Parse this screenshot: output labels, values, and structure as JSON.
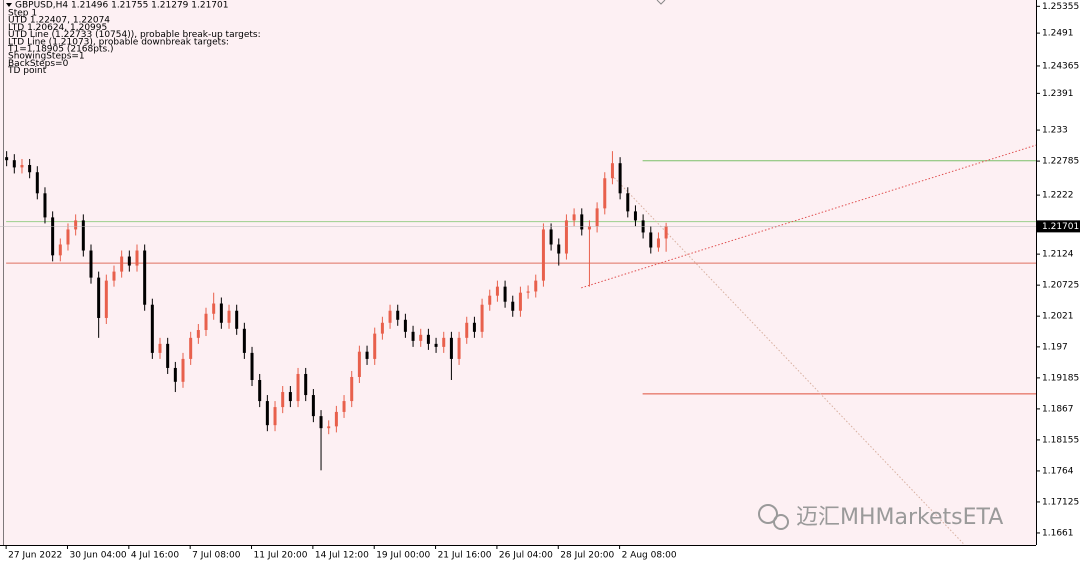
{
  "chart_data": {
    "type": "candlestick",
    "symbol_header": "GBPUSD,H4  1.21496 1.21755 1.21279 1.21701",
    "info_lines": [
      "Step 1",
      "UTD 1.22407, 1.22074",
      "LTD 1.20624, 1.20995",
      "UTD Line (1.22733 (10754)), probable break-up targets:",
      "LTD Line (1.21073), probable downbreak targets:",
      "T1=1.18905 (2168pts.)",
      "ShowingSteps=1",
      "BackSteps=0",
      "TD point"
    ],
    "watermark": "迈汇MHMarketsETA",
    "up_color": "#e8604c",
    "down_color": "#000000",
    "background": "#fdf0f3",
    "open": [
      1.2285,
      1.228,
      1.2268,
      1.2272,
      1.226,
      1.2225,
      1.2185,
      1.2122,
      1.214,
      1.2165,
      1.218,
      1.213,
      1.2085,
      1.2018,
      1.208,
      1.2095,
      1.212,
      1.2105,
      1.213,
      1.204,
      1.196,
      1.1975,
      1.1935,
      1.1912,
      1.195,
      1.1985,
      1.1998,
      1.2025,
      1.2042,
      1.201,
      1.203,
      1.2,
      1.196,
      1.1915,
      1.188,
      1.184,
      1.187,
      1.1895,
      1.188,
      1.1925,
      1.189,
      1.1855,
      1.1835,
      1.1838,
      1.1862,
      1.188,
      1.192,
      1.1962,
      1.195,
      1.1992,
      1.201,
      1.203,
      1.2015,
      1.1995,
      1.198,
      1.199,
      1.1975,
      1.197,
      1.1985,
      1.195,
      1.1985,
      1.201,
      1.1995,
      1.204,
      1.2055,
      1.207,
      1.2045,
      1.203,
      1.206,
      1.2062,
      1.208,
      1.2165,
      1.214,
      1.2125,
      1.218,
      1.219,
      1.2165,
      1.217,
      1.22,
      1.225,
      1.2275,
      1.2225,
      1.2195,
      1.218,
      1.216,
      1.2135,
      1.215
    ],
    "high": [
      1.2295,
      1.229,
      1.2282,
      1.2282,
      1.227,
      1.2235,
      1.2195,
      1.215,
      1.2175,
      1.219,
      1.219,
      1.214,
      1.2095,
      1.209,
      1.2105,
      1.213,
      1.213,
      1.214,
      1.214,
      1.205,
      1.1985,
      1.1985,
      1.1945,
      1.196,
      1.1995,
      1.2008,
      1.2035,
      1.206,
      1.2052,
      1.204,
      1.204,
      1.201,
      1.197,
      1.1925,
      1.189,
      1.188,
      1.1905,
      1.1905,
      1.1935,
      1.1935,
      1.19,
      1.1865,
      1.1848,
      1.1872,
      1.189,
      1.193,
      1.1972,
      1.1972,
      1.2002,
      1.202,
      1.204,
      1.204,
      1.2025,
      1.2005,
      1.2,
      1.2,
      1.1985,
      1.1995,
      1.1995,
      1.1995,
      1.202,
      1.202,
      1.205,
      1.2065,
      1.208,
      1.208,
      1.2055,
      1.207,
      1.2072,
      1.209,
      1.2175,
      1.2175,
      1.215,
      1.219,
      1.22,
      1.22,
      1.218,
      1.221,
      1.226,
      1.2295,
      1.2285,
      1.2235,
      1.2205,
      1.219,
      1.217,
      1.216,
      1.2176
    ],
    "low": [
      1.227,
      1.2258,
      1.2258,
      1.225,
      1.2215,
      1.2175,
      1.2112,
      1.2112,
      1.213,
      1.2155,
      1.212,
      1.2075,
      1.1985,
      1.2008,
      1.207,
      1.2085,
      1.2095,
      1.2095,
      1.203,
      1.195,
      1.195,
      1.1925,
      1.1895,
      1.1902,
      1.194,
      1.1975,
      1.1988,
      1.2015,
      1.2,
      1.2,
      1.199,
      1.195,
      1.1905,
      1.187,
      1.183,
      1.183,
      1.186,
      1.187,
      1.187,
      1.188,
      1.1845,
      1.1765,
      1.1825,
      1.1828,
      1.1852,
      1.187,
      1.191,
      1.194,
      1.194,
      1.1982,
      1.2,
      1.2005,
      1.1985,
      1.197,
      1.197,
      1.1965,
      1.196,
      1.196,
      1.1915,
      1.194,
      1.1975,
      1.1985,
      1.1985,
      1.203,
      1.2045,
      1.2035,
      1.202,
      1.202,
      1.205,
      1.2052,
      1.207,
      1.213,
      1.2105,
      1.2115,
      1.217,
      1.2155,
      1.207,
      1.216,
      1.219,
      1.224,
      1.2215,
      1.2185,
      1.217,
      1.215,
      1.2125,
      1.2128,
      1.2128
    ],
    "close": [
      1.228,
      1.2268,
      1.2272,
      1.226,
      1.2225,
      1.2185,
      1.2122,
      1.214,
      1.2165,
      1.218,
      1.213,
      1.2085,
      1.2018,
      1.208,
      1.2095,
      1.212,
      1.2105,
      1.213,
      1.204,
      1.196,
      1.1975,
      1.1935,
      1.1912,
      1.195,
      1.1985,
      1.1998,
      1.2025,
      1.2042,
      1.201,
      1.203,
      1.2,
      1.196,
      1.1915,
      1.188,
      1.184,
      1.187,
      1.1895,
      1.188,
      1.1925,
      1.189,
      1.1855,
      1.1835,
      1.1838,
      1.1862,
      1.188,
      1.192,
      1.1962,
      1.195,
      1.1992,
      1.201,
      1.203,
      1.2015,
      1.1995,
      1.198,
      1.199,
      1.1975,
      1.197,
      1.1985,
      1.195,
      1.1985,
      1.201,
      1.1995,
      1.204,
      1.2055,
      1.207,
      1.2045,
      1.203,
      1.206,
      1.2062,
      1.208,
      1.2165,
      1.214,
      1.2125,
      1.218,
      1.219,
      1.2165,
      1.217,
      1.22,
      1.225,
      1.2275,
      1.2225,
      1.2195,
      1.218,
      1.216,
      1.2135,
      1.215,
      1.217
    ],
    "ylim": [
      1.1641,
      1.2546
    ],
    "xlim": [
      -0.8,
      134.3
    ],
    "yticks": [
      1.25355,
      1.2491,
      1.24365,
      1.2391,
      1.233,
      1.22785,
      1.2222,
      1.2124,
      1.20725,
      1.2021,
      1.197,
      1.19185,
      1.1867,
      1.18155,
      1.1764,
      1.17125,
      1.1661
    ],
    "current_price": 1.21701,
    "xticks": [
      {
        "value": 0,
        "label": "27 Jun 2022"
      },
      {
        "value": 8,
        "label": "30 Jun 04:00"
      },
      {
        "value": 16,
        "label": "4 Jul 16:00"
      },
      {
        "value": 24,
        "label": "7 Jul 08:00"
      },
      {
        "value": 32,
        "label": "11 Jul 20:00"
      },
      {
        "value": 40,
        "label": "14 Jul 12:00"
      },
      {
        "value": 48,
        "label": "19 Jul 00:00"
      },
      {
        "value": 56,
        "label": "21 Jul 16:00"
      },
      {
        "value": 64,
        "label": "26 Jul 04:00"
      },
      {
        "value": 72,
        "label": "28 Jul 20:00"
      },
      {
        "value": 80,
        "label": "2 Aug 08:00"
      }
    ],
    "hlines": [
      {
        "value": 1.2279,
        "color": "#7dbf6a",
        "start": 83
      },
      {
        "value": 1.2178,
        "color": "#9ccf8c",
        "start": 0
      },
      {
        "value": 1.2109,
        "color": "#e07060",
        "start": 0
      },
      {
        "value": 1.1892,
        "color": "#e0503c",
        "start": 83
      }
    ],
    "trendlines": [
      {
        "from": [
          75,
          1.2068
        ],
        "to": [
          134.3,
          1.2305
        ],
        "color": "#e05050"
      },
      {
        "from": [
          79,
          1.2255
        ],
        "to": [
          125,
          1.1641
        ],
        "color": "#d8b0a0"
      }
    ]
  }
}
